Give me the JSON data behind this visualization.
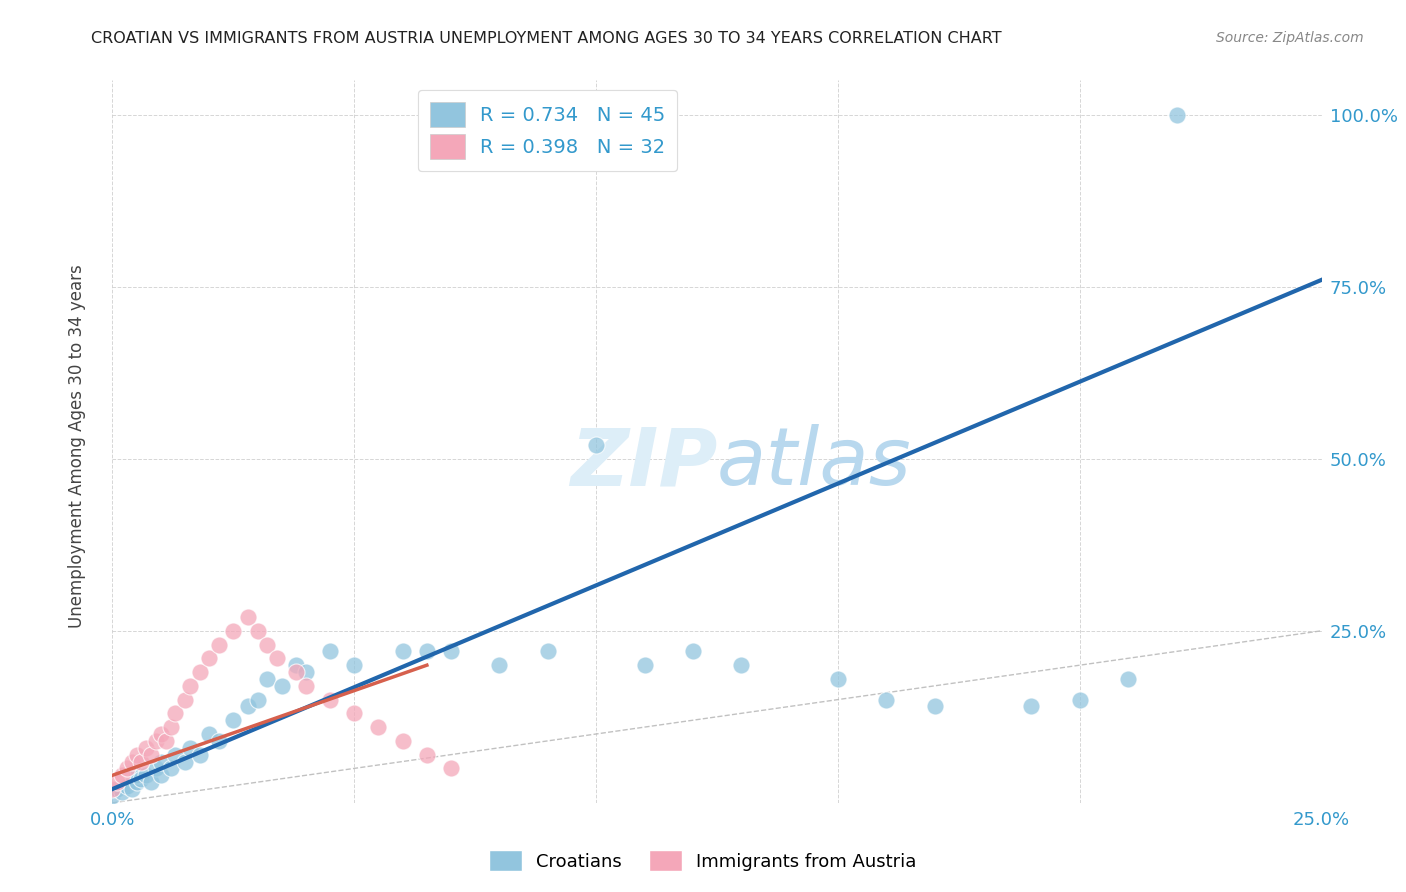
{
  "title": "CROATIAN VS IMMIGRANTS FROM AUSTRIA UNEMPLOYMENT AMONG AGES 30 TO 34 YEARS CORRELATION CHART",
  "source": "Source: ZipAtlas.com",
  "ylabel": "Unemployment Among Ages 30 to 34 years",
  "xlim": [
    0.0,
    0.25
  ],
  "ylim": [
    0.0,
    1.05
  ],
  "xticks": [
    0.0,
    0.05,
    0.1,
    0.15,
    0.2,
    0.25
  ],
  "yticks": [
    0.25,
    0.5,
    0.75,
    1.0
  ],
  "xticklabels": [
    "0.0%",
    "",
    "",
    "",
    "",
    "25.0%"
  ],
  "yticklabels": [
    "25.0%",
    "50.0%",
    "75.0%",
    "100.0%"
  ],
  "croatians_R": 0.734,
  "croatians_N": 45,
  "austria_R": 0.398,
  "austria_N": 32,
  "blue_scatter_color": "#92c5de",
  "pink_scatter_color": "#f4a7b9",
  "blue_line_color": "#2166ac",
  "pink_line_color": "#d6604d",
  "diagonal_color": "#bbbbbb",
  "watermark_color": "#ddeef8",
  "legend_label1": "Croatians",
  "legend_label2": "Immigrants from Austria",
  "cr_x": [
    0.0,
    0.001,
    0.002,
    0.003,
    0.004,
    0.005,
    0.005,
    0.006,
    0.007,
    0.008,
    0.009,
    0.01,
    0.01,
    0.012,
    0.013,
    0.015,
    0.016,
    0.018,
    0.02,
    0.022,
    0.025,
    0.028,
    0.03,
    0.032,
    0.035,
    0.038,
    0.04,
    0.045,
    0.05,
    0.06,
    0.065,
    0.07,
    0.08,
    0.09,
    0.1,
    0.11,
    0.12,
    0.13,
    0.15,
    0.16,
    0.17,
    0.19,
    0.2,
    0.21,
    0.22
  ],
  "cr_y": [
    0.01,
    0.02,
    0.015,
    0.025,
    0.02,
    0.03,
    0.04,
    0.035,
    0.04,
    0.03,
    0.05,
    0.04,
    0.06,
    0.05,
    0.07,
    0.06,
    0.08,
    0.07,
    0.1,
    0.09,
    0.12,
    0.14,
    0.15,
    0.18,
    0.17,
    0.2,
    0.19,
    0.22,
    0.2,
    0.22,
    0.22,
    0.22,
    0.2,
    0.22,
    0.52,
    0.2,
    0.22,
    0.2,
    0.18,
    0.15,
    0.14,
    0.14,
    0.15,
    0.18,
    1.0
  ],
  "au_x": [
    0.0,
    0.001,
    0.002,
    0.003,
    0.004,
    0.005,
    0.006,
    0.007,
    0.008,
    0.009,
    0.01,
    0.011,
    0.012,
    0.013,
    0.015,
    0.016,
    0.018,
    0.02,
    0.022,
    0.025,
    0.028,
    0.03,
    0.032,
    0.034,
    0.038,
    0.04,
    0.045,
    0.05,
    0.055,
    0.06,
    0.065,
    0.07
  ],
  "au_y": [
    0.02,
    0.03,
    0.04,
    0.05,
    0.06,
    0.07,
    0.06,
    0.08,
    0.07,
    0.09,
    0.1,
    0.09,
    0.11,
    0.13,
    0.15,
    0.17,
    0.19,
    0.21,
    0.23,
    0.25,
    0.27,
    0.25,
    0.23,
    0.21,
    0.19,
    0.17,
    0.15,
    0.13,
    0.11,
    0.09,
    0.07,
    0.05
  ]
}
